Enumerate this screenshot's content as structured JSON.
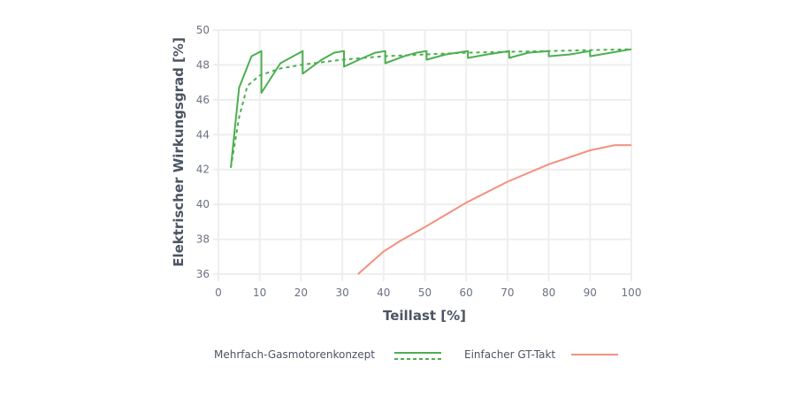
{
  "chart_data": {
    "type": "line",
    "xlabel": "Teillast [%]",
    "ylabel": "Elektrischer Wirkungsgrad  [%]",
    "xlim": [
      0,
      100
    ],
    "ylim": [
      36,
      50
    ],
    "xticks": [
      0,
      10,
      20,
      30,
      40,
      50,
      60,
      70,
      80,
      90,
      100
    ],
    "yticks": [
      36,
      38,
      40,
      42,
      44,
      46,
      48,
      50
    ],
    "grid": true,
    "legend_position": "bottom",
    "colors": {
      "green": "#4caf50",
      "red": "#f4907e"
    },
    "series": [
      {
        "name": "Mehrfach-Gasmotorenkonzept",
        "style": "solid",
        "color": "#4caf50",
        "points": [
          [
            3,
            42.1
          ],
          [
            5,
            46.7
          ],
          [
            8,
            48.5
          ],
          [
            10.4,
            48.8
          ],
          [
            10.4,
            46.4
          ],
          [
            15,
            48.1
          ],
          [
            20.4,
            48.8
          ],
          [
            20.4,
            47.5
          ],
          [
            25,
            48.3
          ],
          [
            28,
            48.7
          ],
          [
            30.4,
            48.8
          ],
          [
            30.4,
            47.9
          ],
          [
            35,
            48.4
          ],
          [
            38,
            48.7
          ],
          [
            40.4,
            48.8
          ],
          [
            40.4,
            48.1
          ],
          [
            45,
            48.5
          ],
          [
            48,
            48.7
          ],
          [
            50.4,
            48.8
          ],
          [
            50.4,
            48.3
          ],
          [
            55,
            48.6
          ],
          [
            60.4,
            48.8
          ],
          [
            60.4,
            48.4
          ],
          [
            65,
            48.6
          ],
          [
            70.4,
            48.8
          ],
          [
            70.4,
            48.4
          ],
          [
            75,
            48.7
          ],
          [
            80,
            48.8
          ],
          [
            80,
            48.5
          ],
          [
            85,
            48.6
          ],
          [
            90,
            48.8
          ],
          [
            90,
            48.5
          ],
          [
            95,
            48.7
          ],
          [
            100,
            48.9
          ]
        ]
      },
      {
        "name": "Mehrfach-Gasmotorenkonzept",
        "style": "dashed",
        "color": "#4caf50",
        "points": [
          [
            3,
            42.1
          ],
          [
            5,
            45
          ],
          [
            7,
            46.8
          ],
          [
            10,
            47.4
          ],
          [
            15,
            47.8
          ],
          [
            20,
            48.0
          ],
          [
            30,
            48.3
          ],
          [
            40,
            48.5
          ],
          [
            50,
            48.6
          ],
          [
            60,
            48.7
          ],
          [
            70,
            48.75
          ],
          [
            80,
            48.8
          ],
          [
            90,
            48.85
          ],
          [
            100,
            48.9
          ]
        ]
      },
      {
        "name": "Einfacher GT-Takt",
        "style": "solid",
        "color": "#f4907e",
        "points": [
          [
            33.8,
            36
          ],
          [
            40,
            37.3
          ],
          [
            44,
            37.9
          ],
          [
            50,
            38.7
          ],
          [
            60,
            40.1
          ],
          [
            70,
            41.3
          ],
          [
            80,
            42.3
          ],
          [
            90,
            43.1
          ],
          [
            96,
            43.4
          ],
          [
            100,
            43.4
          ]
        ]
      }
    ]
  },
  "legend": {
    "item1": "Mehrfach-Gasmotorenkonzept",
    "item2": "Einfacher GT-Takt"
  }
}
